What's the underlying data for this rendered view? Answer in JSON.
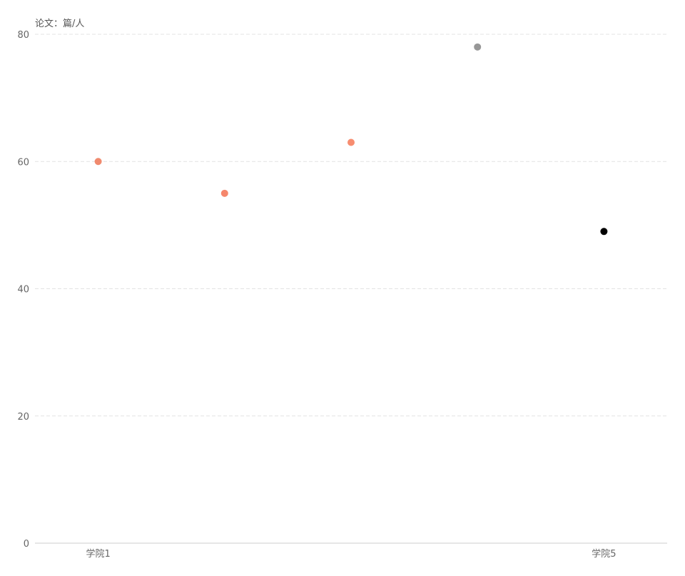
{
  "chart_data": {
    "type": "scatter",
    "unit_label": "论文：篇/人",
    "categories": [
      "学院1",
      "",
      "",
      "",
      "学院5"
    ],
    "x_tick_labels": [
      "学院1",
      "学院5"
    ],
    "values": [
      60,
      55,
      63,
      78,
      49
    ],
    "point_colors": [
      "#f08a6e",
      "#f5876c",
      "#f78d70",
      "#979797",
      "#000000"
    ],
    "y_ticks": [
      0,
      20,
      40,
      60,
      80
    ],
    "ylim": [
      0,
      80
    ],
    "grid": true,
    "title": "",
    "xlabel": "",
    "ylabel": ""
  }
}
